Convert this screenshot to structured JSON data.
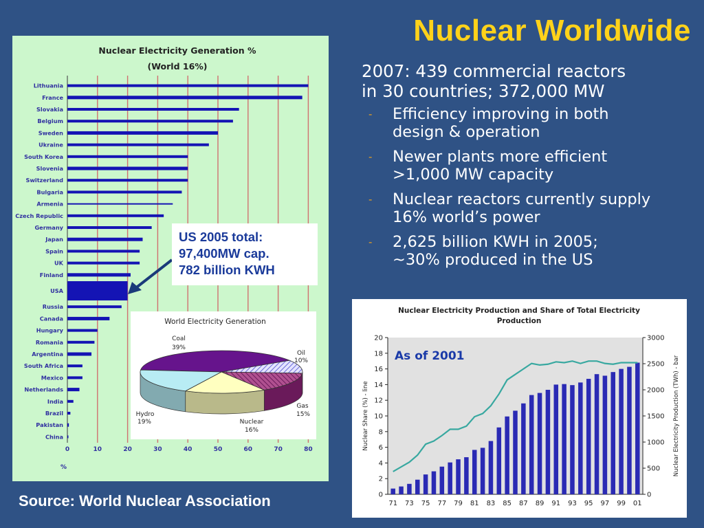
{
  "slide": {
    "title": "Nuclear Worldwide",
    "bullet_main": [
      "2007:  439 commercial reactors",
      "in 30 countries; 372,000 MW"
    ],
    "sub_bullets": [
      {
        "dash": "-",
        "lines": [
          "Efficiency improving in both",
          "design & operation"
        ]
      },
      {
        "dash": "-",
        "lines": [
          "Newer plants more efficient",
          ">1,000 MW capacity"
        ]
      },
      {
        "dash": "-",
        "lines": [
          "Nuclear reactors currently supply",
          "16% world’s power"
        ]
      },
      {
        "dash": "-",
        "lines": [
          "2,625 billion KWH in 2005;",
          "~30% produced in the US"
        ]
      }
    ],
    "source": "Source:  World Nuclear Association",
    "callout": [
      "US 2005 total:",
      "97,400MW cap.",
      "782 billion KWH"
    ]
  },
  "chart_data": [
    {
      "type": "bar",
      "orientation": "horizontal",
      "title": "Nuclear Electricity Generation %",
      "subtitle": "(World 16%)",
      "xlabel": "%",
      "xlim": [
        0,
        80
      ],
      "xticks": [
        0,
        10,
        20,
        30,
        40,
        50,
        60,
        70,
        80
      ],
      "categories": [
        "Lithuania",
        "France",
        "Slovakia",
        "Belgium",
        "Sweden",
        "Ukraine",
        "South Korea",
        "Slovenia",
        "Switzerland",
        "Bulgaria",
        "Armenia",
        "Czech Republic",
        "Germany",
        "Japan",
        "Spain",
        "UK",
        "Finland",
        "USA",
        "Russia",
        "Canada",
        "Hungary",
        "Romania",
        "Argentina",
        "South Africa",
        "Mexico",
        "Netherlands",
        "India",
        "Brazil",
        "Pakistan",
        "China"
      ],
      "values": [
        80,
        78,
        57,
        55,
        50,
        47,
        40,
        40,
        40,
        38,
        35,
        32,
        28,
        25,
        24,
        24,
        21,
        20,
        18,
        14,
        10,
        9,
        8,
        5,
        5,
        4,
        2,
        1,
        0.5,
        0.3
      ]
    },
    {
      "type": "pie",
      "title": "World Electricity Generation",
      "slices": [
        {
          "label": "Coal",
          "pct": "39%",
          "value": 39,
          "color": "#66148c"
        },
        {
          "label": "Oil",
          "pct": "10%",
          "value": 10,
          "color": "#b8b8f0"
        },
        {
          "label": "Gas",
          "pct": "15%",
          "value": 15,
          "color": "#9a3a7a"
        },
        {
          "label": "Nuclear",
          "pct": "16%",
          "value": 16,
          "color": "#ffffc0"
        },
        {
          "label": "Hydro",
          "pct": "19%",
          "value": 19,
          "color": "#b8ecf4"
        }
      ]
    },
    {
      "type": "bar+line",
      "title_lines": [
        "Nuclear Electricity Production and Share of Total Electricity",
        "Production"
      ],
      "annotation": "As of 2001",
      "ylabel_left": "Nuclear Share (%) - line",
      "ylabel_right": "Nuclear Electricity Production (TWh) - bar",
      "ylim_left": [
        0,
        20
      ],
      "ylim_right": [
        0,
        3000
      ],
      "yticks_left": [
        0,
        2,
        4,
        6,
        8,
        10,
        12,
        14,
        16,
        18,
        20
      ],
      "yticks_right": [
        0,
        500,
        1000,
        1500,
        2000,
        2500,
        3000
      ],
      "xtick_labels": [
        "71",
        "73",
        "75",
        "77",
        "79",
        "81",
        "83",
        "85",
        "87",
        "89",
        "91",
        "93",
        "95",
        "97",
        "99",
        "01"
      ],
      "years": [
        1971,
        1972,
        1973,
        1974,
        1975,
        1976,
        1977,
        1978,
        1979,
        1980,
        1981,
        1982,
        1983,
        1984,
        1985,
        1986,
        1987,
        1988,
        1989,
        1990,
        1991,
        1992,
        1993,
        1994,
        1995,
        1996,
        1997,
        1998,
        1999,
        2000,
        2001
      ],
      "bars_twh": [
        110,
        150,
        200,
        280,
        380,
        440,
        530,
        610,
        670,
        710,
        850,
        890,
        1020,
        1280,
        1490,
        1600,
        1740,
        1900,
        1940,
        2000,
        2100,
        2110,
        2090,
        2140,
        2210,
        2300,
        2270,
        2340,
        2400,
        2440,
        2520
      ],
      "line_share": [
        2.9,
        3.5,
        4.1,
        5.0,
        6.4,
        6.8,
        7.5,
        8.3,
        8.3,
        8.7,
        9.9,
        10.3,
        11.3,
        12.8,
        14.6,
        15.3,
        16.0,
        16.7,
        16.5,
        16.6,
        16.9,
        16.8,
        17.0,
        16.7,
        17.0,
        17.0,
        16.7,
        16.6,
        16.8,
        16.8,
        16.8
      ],
      "bar_color": "#2a2ab4",
      "line_color": "#38a8a0"
    }
  ]
}
